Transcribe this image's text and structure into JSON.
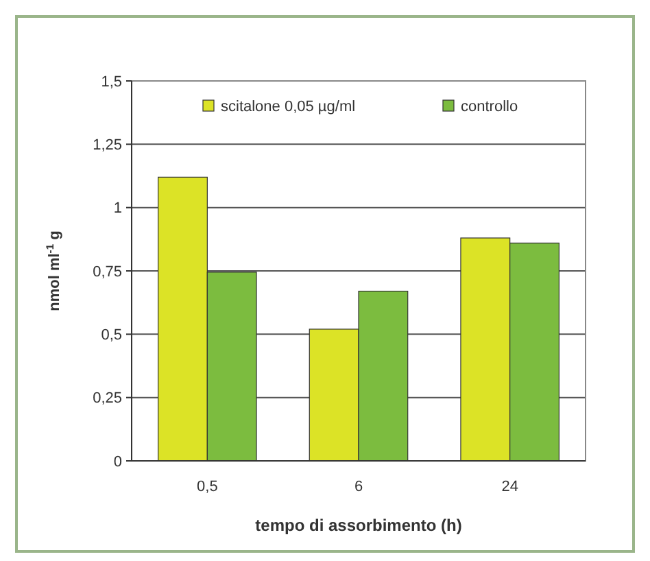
{
  "chart_data": {
    "type": "bar",
    "categories": [
      "0,5",
      "6",
      "24"
    ],
    "series": [
      {
        "name": "scitalone 0,05  µg/ml",
        "color": "#dce326",
        "values": [
          1.12,
          0.52,
          0.88
        ]
      },
      {
        "name": "controllo",
        "color": "#7cbc3f",
        "values": [
          0.745,
          0.67,
          0.86
        ]
      }
    ],
    "ylim": [
      0,
      1.5
    ],
    "yticks": [
      {
        "value": 0,
        "label": "0"
      },
      {
        "value": 0.25,
        "label": "0,25"
      },
      {
        "value": 0.5,
        "label": "0,5"
      },
      {
        "value": 0.75,
        "label": "0,75"
      },
      {
        "value": 1,
        "label": "1"
      },
      {
        "value": 1.25,
        "label": "1,25"
      },
      {
        "value": 1.5,
        "label": "1,5"
      }
    ],
    "ylabel": "nmol ml$^{-1}$ g",
    "xlabel": "tempo di assorbimento (h)",
    "grid": "y",
    "legend": "top"
  }
}
